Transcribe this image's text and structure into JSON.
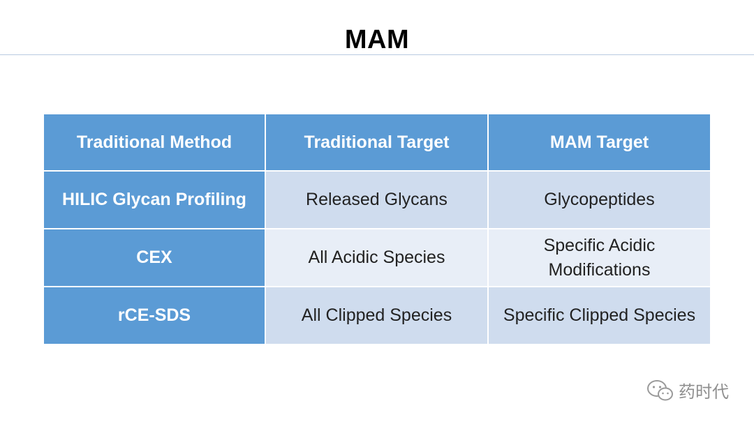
{
  "slide": {
    "title": "MAM"
  },
  "table": {
    "headers": [
      "Traditional Method",
      "Traditional Target",
      "MAM Target"
    ],
    "rows": [
      {
        "method": "HILIC Glycan Profiling",
        "traditional_target": "Released Glycans",
        "mam_target": "Glycopeptides"
      },
      {
        "method": "CEX",
        "traditional_target": "All Acidic Species",
        "mam_target": "Specific Acidic Modifications"
      },
      {
        "method": "rCE-SDS",
        "traditional_target": "All Clipped Species",
        "mam_target": "Specific Clipped Species"
      }
    ]
  },
  "watermark": {
    "text": "药时代",
    "icon": "wechat-icon"
  }
}
